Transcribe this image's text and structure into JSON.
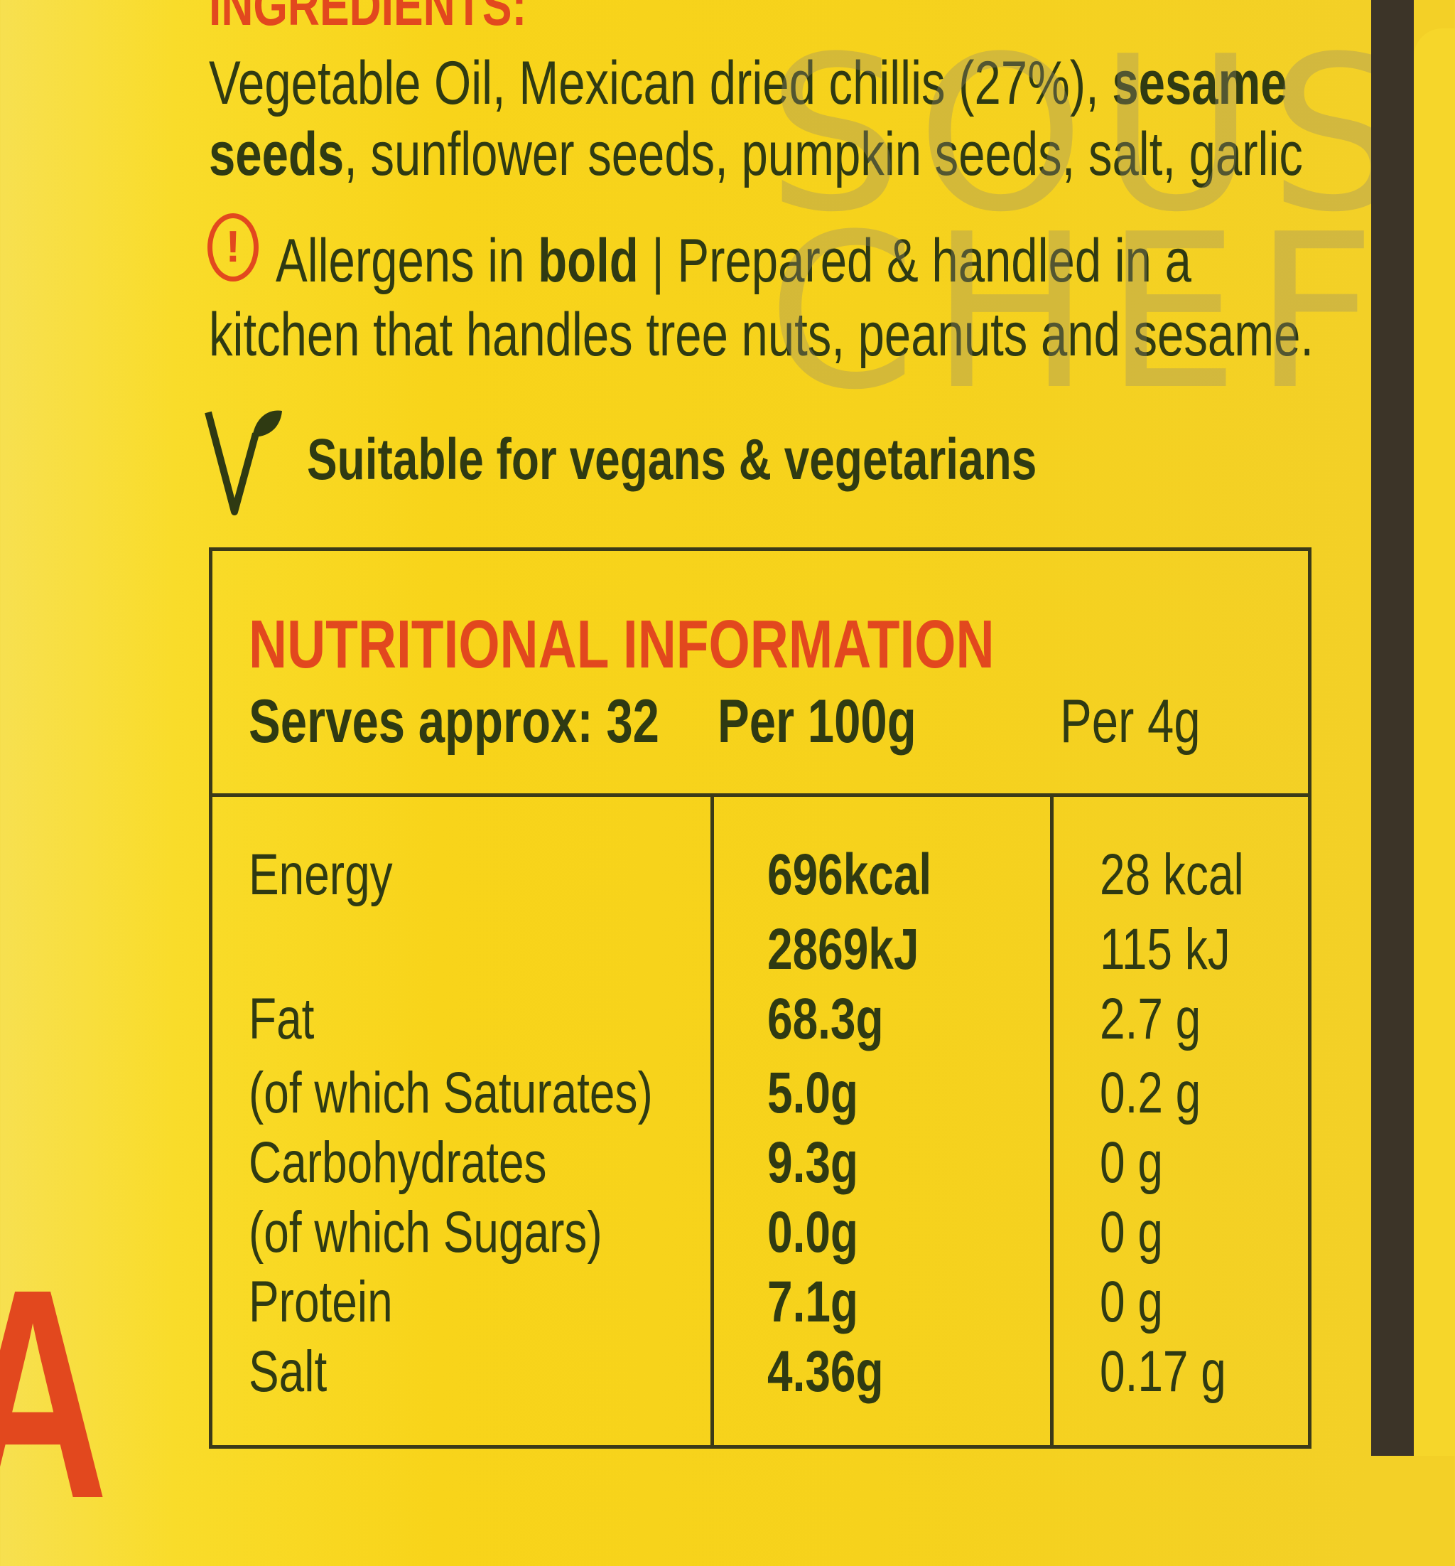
{
  "ingredients": {
    "heading": "INGREDIENTS:",
    "line1_a": "Vegetable Oil, Mexican dried chillis (27%), ",
    "line1_b": "sesame",
    "line2_a": "seeds",
    "line2_b": ", sunflower seeds, pumpkin seeds, salt, garlic"
  },
  "allergens": {
    "icon": "exclamation-circle-icon",
    "text_a": "Allergens in ",
    "text_bold": "bold",
    "text_b": " | Prepared & handled in a",
    "line2": "kitchen that handles tree nuts, peanuts and sesame."
  },
  "vegan": {
    "icon": "vegan-leaf-icon",
    "text": "Suitable for vegans & vegetarians"
  },
  "watermark": {
    "line1": "SOUS",
    "line2": "CHEF"
  },
  "nutrition": {
    "title": "NUTRITIONAL INFORMATION",
    "serves": "Serves approx: 32",
    "col1": "Per 100g",
    "col2": "Per 4g",
    "rows": [
      {
        "label": "Energy",
        "per100": "696kcal",
        "per4": "28 kcal"
      },
      {
        "label": "",
        "per100": "2869kJ",
        "per4": "115 kJ"
      },
      {
        "label": "Fat",
        "per100": "68.3g",
        "per4": "2.7 g"
      },
      {
        "label": "(of which Saturates)",
        "per100": "5.0g",
        "per4": "0.2 g"
      },
      {
        "label": "Carbohydrates",
        "per100": "9.3g",
        "per4": "0 g"
      },
      {
        "label": "(of which Sugars)",
        "per100": "0.0g",
        "per4": "0 g"
      },
      {
        "label": "Protein",
        "per100": "7.1g",
        "per4": "0 g"
      },
      {
        "label": "Salt",
        "per100": "4.36g",
        "per4": "0.17 g"
      }
    ]
  },
  "colors": {
    "background": "#f8d41a",
    "text": "#2f3a12",
    "accent": "#e2481e"
  }
}
